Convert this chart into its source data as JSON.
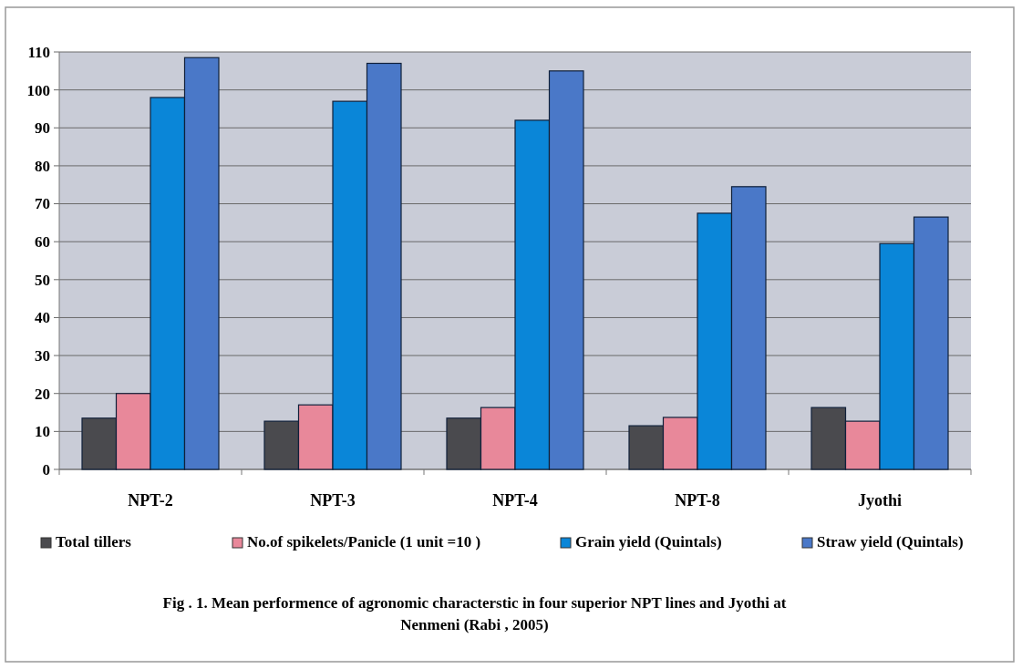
{
  "chart_data": {
    "type": "bar",
    "categories": [
      "NPT-2",
      "NPT-3",
      "NPT-4",
      "NPT-8",
      "Jyothi"
    ],
    "series": [
      {
        "name": "Total tillers",
        "color": "#4a4a4e",
        "values": [
          13.5,
          12.7,
          13.5,
          11.5,
          16.3
        ]
      },
      {
        "name": "No.of spikelets/Panicle (1 unit =10 )",
        "color": "#e8889a",
        "values": [
          20,
          17,
          16.3,
          13.7,
          12.7
        ]
      },
      {
        "name": "Grain yield (Quintals)",
        "color": "#0a86d8",
        "values": [
          98,
          97,
          92,
          67.5,
          59.5
        ]
      },
      {
        "name": "Straw yield (Quintals)",
        "color": "#4a78c8",
        "values": [
          108.5,
          107,
          105,
          74.5,
          66.5
        ]
      }
    ],
    "ylim": [
      0,
      110
    ],
    "yticks": [
      0,
      10,
      20,
      30,
      40,
      50,
      60,
      70,
      80,
      90,
      100,
      110
    ],
    "grid": "y",
    "legend": "bottom",
    "annotations": [
      "Fig . 1. Mean performence of agronomic characterstic in  four superior NPT lines and Jyothi at Nenmeni (Rabi , 2005)"
    ]
  }
}
